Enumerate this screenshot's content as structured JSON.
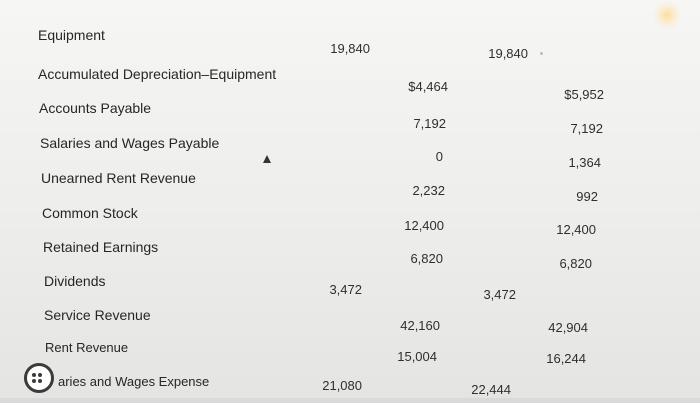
{
  "rows": [
    {
      "account": "Equipment",
      "trial_debit": "19,840",
      "trial_credit": "",
      "adjusted_debit": "19,840",
      "adjusted_credit": ""
    },
    {
      "account": "Accumulated Depreciation–Equipment",
      "trial_debit": "",
      "trial_credit": "$4,464",
      "adjusted_debit": "",
      "adjusted_credit": "$5,952"
    },
    {
      "account": "Accounts Payable",
      "trial_debit": "",
      "trial_credit": "7,192",
      "adjusted_debit": "",
      "adjusted_credit": "7,192"
    },
    {
      "account": "Salaries and Wages Payable",
      "trial_debit": "",
      "trial_credit": "0",
      "adjusted_debit": "",
      "adjusted_credit": "1,364"
    },
    {
      "account": "Unearned Rent Revenue",
      "trial_debit": "",
      "trial_credit": "2,232",
      "adjusted_debit": "",
      "adjusted_credit": "992"
    },
    {
      "account": "Common Stock",
      "trial_debit": "",
      "trial_credit": "12,400",
      "adjusted_debit": "",
      "adjusted_credit": "12,400"
    },
    {
      "account": "Retained Earnings",
      "trial_debit": "",
      "trial_credit": "6,820",
      "adjusted_debit": "",
      "adjusted_credit": "6,820"
    },
    {
      "account": "Dividends",
      "trial_debit": "3,472",
      "trial_credit": "",
      "adjusted_debit": "3,472",
      "adjusted_credit": ""
    },
    {
      "account": "Service Revenue",
      "trial_debit": "",
      "trial_credit": "42,160",
      "adjusted_debit": "",
      "adjusted_credit": "42,904"
    },
    {
      "account": "Rent Revenue",
      "trial_debit": "",
      "trial_credit": "15,004",
      "adjusted_debit": "",
      "adjusted_credit": "16,244"
    },
    {
      "account": "aries and Wages Expense",
      "trial_debit": "21,080",
      "trial_credit": "",
      "adjusted_debit": "22,444",
      "adjusted_credit": ""
    }
  ]
}
